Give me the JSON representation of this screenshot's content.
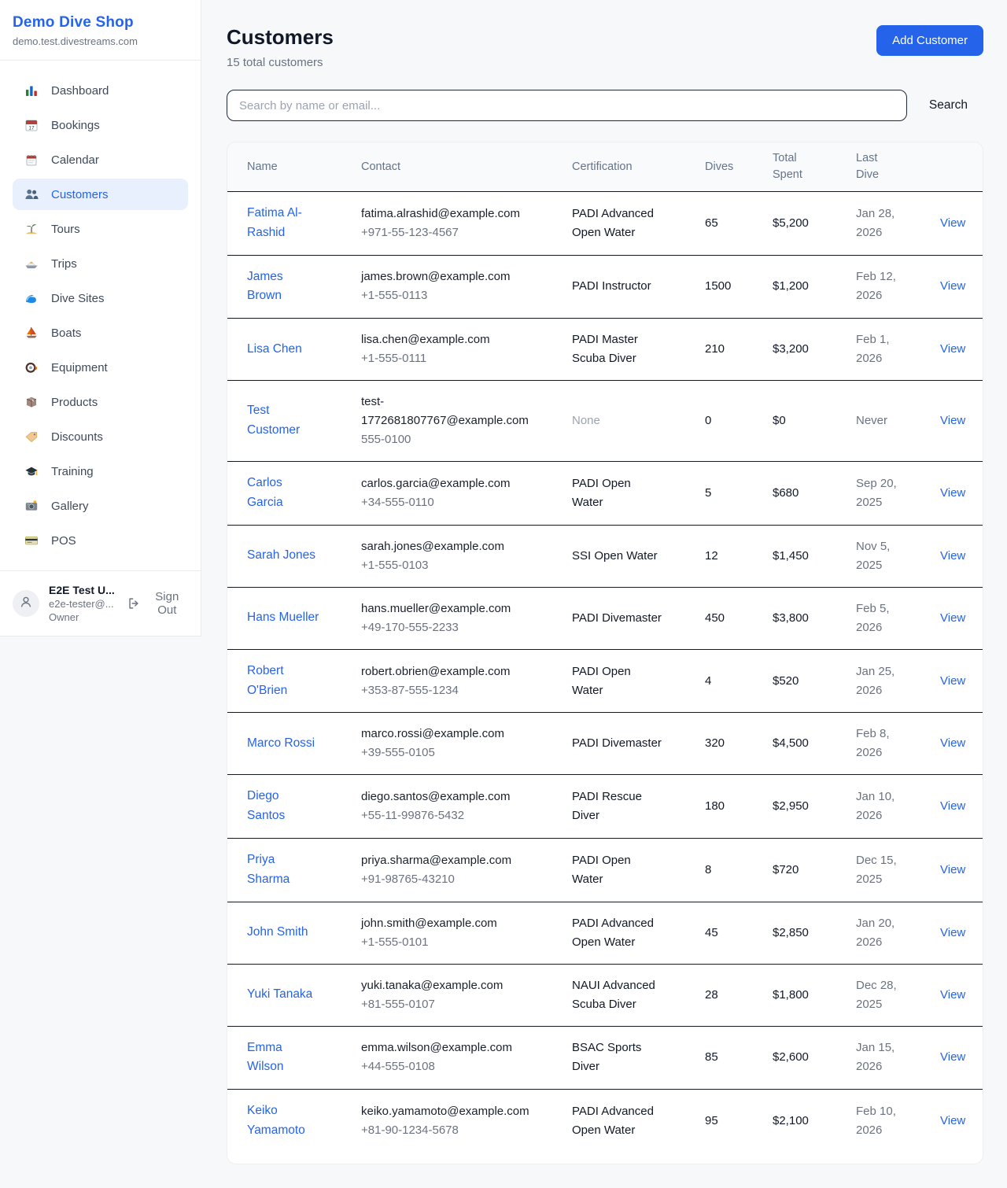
{
  "colors": {
    "accent": "#2563eb",
    "active_item_bg": "#e8f0fe",
    "page_bg": "#f7f8fa",
    "row_border": "#141821",
    "text_dark": "#111827",
    "text_muted": "#6b7280"
  },
  "sidebar": {
    "shop_name": "Demo Dive Shop",
    "shop_domain": "demo.test.divestreams.com",
    "items": [
      {
        "icon": "bar-chart-icon",
        "label": "Dashboard",
        "active": false
      },
      {
        "icon": "calendar-date-icon",
        "label": "Bookings",
        "active": false
      },
      {
        "icon": "calendar-icon",
        "label": "Calendar",
        "active": false
      },
      {
        "icon": "people-icon",
        "label": "Customers",
        "active": true
      },
      {
        "icon": "island-icon",
        "label": "Tours",
        "active": false
      },
      {
        "icon": "speedboat-icon",
        "label": "Trips",
        "active": false
      },
      {
        "icon": "wave-icon",
        "label": "Dive Sites",
        "active": false
      },
      {
        "icon": "sailboat-icon",
        "label": "Boats",
        "active": false
      },
      {
        "icon": "diving-mask-icon",
        "label": "Equipment",
        "active": false
      },
      {
        "icon": "package-icon",
        "label": "Products",
        "active": false
      },
      {
        "icon": "tag-icon",
        "label": "Discounts",
        "active": false
      },
      {
        "icon": "graduation-cap-icon",
        "label": "Training",
        "active": false
      },
      {
        "icon": "camera-icon",
        "label": "Gallery",
        "active": false
      },
      {
        "icon": "credit-card-icon",
        "label": "POS",
        "active": false
      }
    ],
    "user": {
      "name": "E2E Test U...",
      "email": "e2e-tester@...",
      "role": "Owner",
      "sign_out_label": "Sign Out"
    }
  },
  "header": {
    "title": "Customers",
    "subtitle": "15 total customers",
    "add_button_label": "Add Customer"
  },
  "search": {
    "placeholder": "Search by name or email...",
    "button_label": "Search"
  },
  "table": {
    "columns": [
      "Name",
      "Contact",
      "Certification",
      "Dives",
      "Total Spent",
      "Last Dive",
      ""
    ],
    "rows": [
      {
        "name": "Fatima Al-Rashid",
        "email": "fatima.alrashid@example.com",
        "phone": "+971-55-123-4567",
        "certification": "PADI Advanced Open Water",
        "cert_muted": false,
        "dives": "65",
        "total_spent": "$5,200",
        "last_dive": "Jan 28, 2026",
        "action": "View"
      },
      {
        "name": "James Brown",
        "email": "james.brown@example.com",
        "phone": "+1-555-0113",
        "certification": "PADI Instructor",
        "cert_muted": false,
        "dives": "1500",
        "total_spent": "$1,200",
        "last_dive": "Feb 12, 2026",
        "action": "View"
      },
      {
        "name": "Lisa Chen",
        "email": "lisa.chen@example.com",
        "phone": "+1-555-0111",
        "certification": "PADI Master Scuba Diver",
        "cert_muted": false,
        "dives": "210",
        "total_spent": "$3,200",
        "last_dive": "Feb 1, 2026",
        "action": "View"
      },
      {
        "name": "Test Customer",
        "email": "test-1772681807767@example.com",
        "phone": "555-0100",
        "certification": "None",
        "cert_muted": true,
        "dives": "0",
        "total_spent": "$0",
        "last_dive": "Never",
        "action": "View"
      },
      {
        "name": "Carlos Garcia",
        "email": "carlos.garcia@example.com",
        "phone": "+34-555-0110",
        "certification": "PADI Open Water",
        "cert_muted": false,
        "dives": "5",
        "total_spent": "$680",
        "last_dive": "Sep 20, 2025",
        "action": "View"
      },
      {
        "name": "Sarah Jones",
        "email": "sarah.jones@example.com",
        "phone": "+1-555-0103",
        "certification": "SSI Open Water",
        "cert_muted": false,
        "dives": "12",
        "total_spent": "$1,450",
        "last_dive": "Nov 5, 2025",
        "action": "View"
      },
      {
        "name": "Hans Mueller",
        "email": "hans.mueller@example.com",
        "phone": "+49-170-555-2233",
        "certification": "PADI Divemaster",
        "cert_muted": false,
        "dives": "450",
        "total_spent": "$3,800",
        "last_dive": "Feb 5, 2026",
        "action": "View"
      },
      {
        "name": "Robert O'Brien",
        "email": "robert.obrien@example.com",
        "phone": "+353-87-555-1234",
        "certification": "PADI Open Water",
        "cert_muted": false,
        "dives": "4",
        "total_spent": "$520",
        "last_dive": "Jan 25, 2026",
        "action": "View"
      },
      {
        "name": "Marco Rossi",
        "email": "marco.rossi@example.com",
        "phone": "+39-555-0105",
        "certification": "PADI Divemaster",
        "cert_muted": false,
        "dives": "320",
        "total_spent": "$4,500",
        "last_dive": "Feb 8, 2026",
        "action": "View"
      },
      {
        "name": "Diego Santos",
        "email": "diego.santos@example.com",
        "phone": "+55-11-99876-5432",
        "certification": "PADI Rescue Diver",
        "cert_muted": false,
        "dives": "180",
        "total_spent": "$2,950",
        "last_dive": "Jan 10, 2026",
        "action": "View"
      },
      {
        "name": "Priya Sharma",
        "email": "priya.sharma@example.com",
        "phone": "+91-98765-43210",
        "certification": "PADI Open Water",
        "cert_muted": false,
        "dives": "8",
        "total_spent": "$720",
        "last_dive": "Dec 15, 2025",
        "action": "View"
      },
      {
        "name": "John Smith",
        "email": "john.smith@example.com",
        "phone": "+1-555-0101",
        "certification": "PADI Advanced Open Water",
        "cert_muted": false,
        "dives": "45",
        "total_spent": "$2,850",
        "last_dive": "Jan 20, 2026",
        "action": "View"
      },
      {
        "name": "Yuki Tanaka",
        "email": "yuki.tanaka@example.com",
        "phone": "+81-555-0107",
        "certification": "NAUI Advanced Scuba Diver",
        "cert_muted": false,
        "dives": "28",
        "total_spent": "$1,800",
        "last_dive": "Dec 28, 2025",
        "action": "View"
      },
      {
        "name": "Emma Wilson",
        "email": "emma.wilson@example.com",
        "phone": "+44-555-0108",
        "certification": "BSAC Sports Diver",
        "cert_muted": false,
        "dives": "85",
        "total_spent": "$2,600",
        "last_dive": "Jan 15, 2026",
        "action": "View"
      },
      {
        "name": "Keiko Yamamoto",
        "email": "keiko.yamamoto@example.com",
        "phone": "+81-90-1234-5678",
        "certification": "PADI Advanced Open Water",
        "cert_muted": false,
        "dives": "95",
        "total_spent": "$2,100",
        "last_dive": "Feb 10, 2026",
        "action": "View"
      }
    ]
  }
}
